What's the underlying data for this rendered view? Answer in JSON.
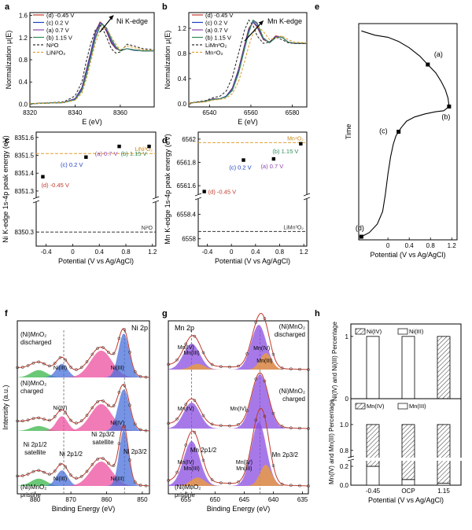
{
  "chart_data": [
    {
      "panel": "a",
      "type": "line",
      "xlabel": "E (eV)",
      "ylabel": "Normalization μ(E)",
      "title": "Ni K-edge",
      "xlim": [
        8320,
        8375
      ],
      "ylim": [
        -0.05,
        1.65
      ],
      "xticks": [
        8320,
        8340,
        8360
      ],
      "yticks": [
        0.0,
        0.4,
        0.8,
        1.2,
        1.6
      ],
      "legend_position": "top-left",
      "annotations": [
        "arrow toward higher energy from (d) to (b)"
      ],
      "series": [
        {
          "name": "(d) -0.45 V",
          "color": "#c0392b",
          "dash": "solid",
          "x": [
            8320,
            8335,
            8340,
            8343,
            8345,
            8347,
            8349,
            8351,
            8352,
            8354,
            8356,
            8358,
            8360,
            8363,
            8366,
            8370,
            8375
          ],
          "y": [
            0.01,
            0.03,
            0.1,
            0.3,
            0.62,
            0.95,
            1.3,
            1.48,
            1.45,
            1.3,
            1.1,
            1.0,
            0.97,
            1.0,
            0.97,
            0.96,
            0.96
          ]
        },
        {
          "name": "(c) 0.2 V",
          "color": "#1f3fbf",
          "dash": "solid",
          "x": [
            8320,
            8335,
            8340,
            8343,
            8345,
            8347,
            8349,
            8351,
            8352,
            8354,
            8356,
            8358,
            8360,
            8363,
            8366,
            8370,
            8375
          ],
          "y": [
            0.01,
            0.03,
            0.1,
            0.29,
            0.6,
            0.93,
            1.28,
            1.46,
            1.45,
            1.32,
            1.12,
            1.01,
            0.97,
            1.0,
            0.97,
            0.96,
            0.96
          ]
        },
        {
          "name": "(a) 0.7 V",
          "color": "#8e44ad",
          "dash": "solid",
          "x": [
            8320,
            8335,
            8340,
            8343,
            8345,
            8347,
            8349,
            8351,
            8352,
            8354,
            8356,
            8358,
            8360,
            8363,
            8366,
            8370,
            8375
          ],
          "y": [
            0.01,
            0.03,
            0.09,
            0.26,
            0.55,
            0.88,
            1.22,
            1.42,
            1.45,
            1.35,
            1.15,
            1.02,
            0.96,
            1.0,
            0.98,
            0.96,
            0.96
          ]
        },
        {
          "name": "(b) 1.15 V",
          "color": "#2e8b57",
          "dash": "solid",
          "x": [
            8320,
            8335,
            8340,
            8343,
            8345,
            8347,
            8349,
            8351,
            8352,
            8354,
            8356,
            8358,
            8360,
            8363,
            8366,
            8370,
            8375
          ],
          "y": [
            0.01,
            0.03,
            0.08,
            0.24,
            0.52,
            0.85,
            1.18,
            1.4,
            1.44,
            1.37,
            1.18,
            1.04,
            0.96,
            1.0,
            0.98,
            0.96,
            0.96
          ]
        },
        {
          "name": "Ni²O",
          "color": "#333333",
          "dash": "dashed",
          "x": [
            8320,
            8335,
            8340,
            8343,
            8345,
            8347,
            8349,
            8351,
            8352,
            8354,
            8356,
            8358,
            8360,
            8363,
            8366,
            8370,
            8375
          ],
          "y": [
            0.01,
            0.04,
            0.15,
            0.4,
            0.78,
            1.1,
            1.34,
            1.42,
            1.38,
            1.2,
            1.0,
            0.92,
            0.94,
            1.08,
            1.05,
            1.0,
            0.98
          ]
        },
        {
          "name": "LiNi³O₂",
          "color": "#e0a030",
          "dash": "dashed",
          "x": [
            8320,
            8335,
            8340,
            8343,
            8345,
            8347,
            8349,
            8351,
            8352,
            8354,
            8356,
            8358,
            8360,
            8363,
            8366,
            8370,
            8375
          ],
          "y": [
            0.01,
            0.03,
            0.07,
            0.2,
            0.45,
            0.78,
            1.1,
            1.32,
            1.38,
            1.36,
            1.22,
            1.08,
            0.98,
            1.05,
            1.02,
            0.98,
            0.97
          ]
        }
      ]
    },
    {
      "panel": "b",
      "type": "line",
      "xlabel": "E (eV)",
      "ylabel": "Normalization μ(E)",
      "title": "Mn K-edge",
      "xlim": [
        6530,
        6587
      ],
      "ylim": [
        -0.05,
        1.45
      ],
      "xticks": [
        6540,
        6560,
        6580
      ],
      "yticks": [
        0.0,
        0.4,
        0.8,
        1.2
      ],
      "legend_position": "top-left",
      "annotations": [
        "arrow toward higher energy"
      ],
      "series": [
        {
          "name": "(d) -0.45 V",
          "color": "#c0392b",
          "dash": "solid",
          "x": [
            6530,
            6538,
            6542,
            6545,
            6548,
            6551,
            6554,
            6557,
            6559,
            6561,
            6563,
            6566,
            6569,
            6572,
            6575,
            6578,
            6581,
            6587
          ],
          "y": [
            0.01,
            0.04,
            0.08,
            0.08,
            0.12,
            0.25,
            0.55,
            0.95,
            1.2,
            1.3,
            1.22,
            1.02,
            0.98,
            1.08,
            1.06,
            0.98,
            0.96,
            0.96
          ]
        },
        {
          "name": "(c) 0.2 V",
          "color": "#1f3fbf",
          "dash": "solid",
          "x": [
            6530,
            6538,
            6542,
            6545,
            6548,
            6551,
            6554,
            6557,
            6559,
            6561,
            6563,
            6566,
            6569,
            6572,
            6575,
            6578,
            6581,
            6587
          ],
          "y": [
            0.01,
            0.04,
            0.08,
            0.08,
            0.12,
            0.24,
            0.53,
            0.93,
            1.18,
            1.3,
            1.24,
            1.03,
            0.98,
            1.07,
            1.06,
            0.98,
            0.96,
            0.96
          ]
        },
        {
          "name": "(a) 0.7 V",
          "color": "#8e44ad",
          "dash": "solid",
          "x": [
            6530,
            6538,
            6542,
            6545,
            6548,
            6551,
            6554,
            6557,
            6559,
            6561,
            6563,
            6566,
            6569,
            6572,
            6575,
            6578,
            6581,
            6587
          ],
          "y": [
            0.01,
            0.04,
            0.08,
            0.08,
            0.11,
            0.22,
            0.5,
            0.9,
            1.15,
            1.32,
            1.27,
            1.04,
            0.97,
            1.06,
            1.06,
            0.98,
            0.96,
            0.96
          ]
        },
        {
          "name": "(b) 1.15 V",
          "color": "#2e8b57",
          "dash": "solid",
          "x": [
            6530,
            6538,
            6542,
            6545,
            6548,
            6551,
            6554,
            6557,
            6559,
            6561,
            6563,
            6566,
            6569,
            6572,
            6575,
            6578,
            6581,
            6587
          ],
          "y": [
            0.01,
            0.04,
            0.07,
            0.08,
            0.11,
            0.21,
            0.48,
            0.88,
            1.13,
            1.33,
            1.29,
            1.05,
            0.97,
            1.05,
            1.06,
            0.98,
            0.96,
            0.96
          ]
        },
        {
          "name": "LiMn³O₂",
          "color": "#333333",
          "dash": "dashed",
          "x": [
            6530,
            6538,
            6542,
            6545,
            6548,
            6551,
            6554,
            6557,
            6559,
            6561,
            6563,
            6566,
            6569,
            6572,
            6575,
            6578,
            6581,
            6587
          ],
          "y": [
            0.01,
            0.05,
            0.1,
            0.12,
            0.2,
            0.42,
            0.8,
            1.18,
            1.33,
            1.25,
            1.08,
            0.96,
            0.98,
            1.06,
            1.02,
            0.97,
            0.96,
            0.96
          ]
        },
        {
          "name": "Mn⁴O₂",
          "color": "#e0a030",
          "dash": "dashed",
          "x": [
            6530,
            6538,
            6542,
            6545,
            6548,
            6551,
            6554,
            6557,
            6559,
            6561,
            6563,
            6566,
            6569,
            6572,
            6575,
            6578,
            6581,
            6587
          ],
          "y": [
            0.01,
            0.03,
            0.06,
            0.07,
            0.09,
            0.16,
            0.35,
            0.68,
            0.92,
            1.12,
            1.23,
            1.15,
            1.02,
            1.05,
            1.08,
            1.02,
            0.98,
            0.97
          ]
        }
      ]
    },
    {
      "panel": "c",
      "type": "scatter",
      "xlabel": "Potential (V vs Ag/AgCl)",
      "ylabel": "Ni K-edge 1s-4p peak energy (eV)",
      "xlim": [
        -0.55,
        1.25
      ],
      "xticks": [
        -0.4,
        0.0,
        0.4,
        0.8,
        1.2
      ],
      "y_break": true,
      "yticks_upper": [
        8351.3,
        8351.4,
        8351.5,
        8351.6
      ],
      "ytick_labels_upper": [
        "8351.3",
        "8351.4",
        "8351.5",
        "8351.6"
      ],
      "yticks_lower": [
        8350.3
      ],
      "ytick_labels_lower": [
        "8350.3"
      ],
      "points": [
        {
          "label": "(d) -0.45 V",
          "x": -0.45,
          "y": 8351.38,
          "color": "#c0392b"
        },
        {
          "label": "(c) 0.2 V",
          "x": 0.2,
          "y": 8351.49,
          "color": "#1f3fbf"
        },
        {
          "label": "(a) 0.7 V",
          "x": 0.7,
          "y": 8351.55,
          "color": "#8e44ad"
        },
        {
          "label": "(b) 1.15 V",
          "x": 1.15,
          "y": 8351.55,
          "color": "#2e8b57"
        }
      ],
      "reference_lines": [
        {
          "label": "LiNi³O₂",
          "y": 8351.51,
          "color": "#e0a030"
        },
        {
          "label": "Ni²O",
          "y": 8350.3,
          "color": "#333333"
        }
      ]
    },
    {
      "panel": "d",
      "type": "scatter",
      "xlabel": "Potential (V vs Ag/AgCl)",
      "ylabel": "Mn K-edge 1s-4p peak energy (eV)",
      "xlim": [
        -0.55,
        1.25
      ],
      "xticks": [
        -0.4,
        0.0,
        0.4,
        0.8,
        1.2
      ],
      "y_break": true,
      "yticks_upper": [
        6561.6,
        6561.8,
        6562.0
      ],
      "ytick_labels_upper": [
        "6561.6",
        "6561.8",
        "6562.0"
      ],
      "yticks_lower": [
        6558.0,
        6558.4
      ],
      "ytick_labels_lower": [
        "6558.0",
        "6558.4"
      ],
      "points": [
        {
          "label": "(d) -0.45 V",
          "x": -0.45,
          "y": 6561.55,
          "color": "#c0392b"
        },
        {
          "label": "(c) 0.2 V",
          "x": 0.2,
          "y": 6561.82,
          "color": "#1f3fbf"
        },
        {
          "label": "(a) 0.7 V",
          "x": 0.7,
          "y": 6561.83,
          "color": "#8e44ad"
        },
        {
          "label": "(b) 1.15 V",
          "x": 1.15,
          "y": 6561.96,
          "color": "#2e8b57"
        }
      ],
      "reference_lines": [
        {
          "label": "Mn⁴O₂",
          "y": 6561.97,
          "color": "#e0a030"
        },
        {
          "label": "LiMn³O₂",
          "y": 6558.12,
          "color": "#333333"
        }
      ]
    },
    {
      "panel": "e",
      "type": "line",
      "xlabel": "Potential (V vs Ag/AgCl)",
      "ylabel": "Time",
      "xlim": [
        -0.55,
        1.3
      ],
      "xticks": [
        0.0,
        0.4,
        0.8,
        1.2
      ],
      "ylim": [
        0,
        1
      ],
      "yticks": [],
      "series": [
        {
          "name": "",
          "color": "#000000",
          "x": [
            -0.5,
            -0.35,
            -0.2,
            -0.1,
            -0.05,
            0.0,
            0.05,
            0.1,
            0.15,
            0.2,
            0.25,
            0.35,
            0.5,
            0.7,
            0.9,
            1.05,
            1.15,
            1.13,
            1.08,
            1.0,
            0.9,
            0.75,
            0.6,
            0.4,
            0.2,
            0.0,
            -0.25,
            -0.5
          ],
          "y": [
            0.0,
            0.02,
            0.06,
            0.12,
            0.2,
            0.3,
            0.38,
            0.44,
            0.48,
            0.5,
            0.52,
            0.55,
            0.57,
            0.585,
            0.595,
            0.6,
            0.62,
            0.66,
            0.7,
            0.74,
            0.78,
            0.82,
            0.86,
            0.9,
            0.93,
            0.95,
            0.96,
            0.98
          ]
        }
      ],
      "points": [
        {
          "label": "(d)",
          "x": -0.5,
          "y": 0.0
        },
        {
          "label": "(c)",
          "x": 0.2,
          "y": 0.5
        },
        {
          "label": "(b)",
          "x": 1.15,
          "y": 0.62
        },
        {
          "label": "(a)",
          "x": 0.75,
          "y": 0.82
        }
      ]
    },
    {
      "panel": "f",
      "type": "line",
      "xlabel": "Binding Energy (eV)",
      "ylabel": "Intensity (a.u.)",
      "title": "Ni 2p",
      "xlim": [
        885,
        848
      ],
      "xticks": [
        880,
        870,
        860,
        850
      ],
      "spectra": [
        {
          "name": "(Ni)MnO₂ discharged",
          "peak_labels": [
            "Ni(III)",
            "Ni(III)"
          ]
        },
        {
          "name": "(Ni)MnO₂ charged",
          "peak_labels": [
            "Ni(IV)",
            "Ni(IV)"
          ]
        },
        {
          "name": "(Ni)MnO₂ pristine",
          "peak_labels": [
            "Ni(III)",
            "Ni(III)"
          ],
          "annotations": [
            "Ni 2p1/2 satellite",
            "Ni 2p1/2",
            "Ni 2p3/2 satellite",
            "Ni 2p3/2"
          ]
        }
      ],
      "reference_lines_x": [
        872.0,
        855.0
      ]
    },
    {
      "panel": "g",
      "type": "line",
      "xlabel": "Binding Energy (eV)",
      "ylabel": "",
      "title": "Mn 2p",
      "xlim": [
        658,
        634
      ],
      "xticks": [
        655,
        650,
        645,
        640,
        635
      ],
      "spectra": [
        {
          "name": "(Ni)MnO₂ discharged",
          "peak_labels": [
            "Mn(IV)",
            "Mn(III)",
            "Mn(IV)",
            "Mn(III)"
          ]
        },
        {
          "name": "(Ni)MnO₂ charged",
          "peak_labels": [
            "Mn(IV)",
            "Mn(IV)"
          ]
        },
        {
          "name": "(Ni)MnO₂ pristine",
          "peak_labels": [
            "Mn(IV)",
            "Mn(III)",
            "Mn(IV)",
            "Mn(III)"
          ],
          "annotations": [
            "Mn 2p1/2",
            "Mn 2p3/2"
          ]
        }
      ],
      "reference_lines_x": [
        654.0,
        642.3
      ]
    },
    {
      "panel": "h",
      "type": "bar",
      "xlabel": "Potential (V vs Ag/AgCl)",
      "categories": [
        "-0.45",
        "OCP",
        "1.15"
      ],
      "subplots": [
        {
          "ylabel": "Ni(IV) and Ni(III) Percentage",
          "ylim": [
            0,
            1.2
          ],
          "yticks": [
            0,
            1
          ],
          "series": [
            {
              "name": "Ni(IV)",
              "values": [
                0,
                0,
                1.0
              ],
              "pattern": "hatched"
            },
            {
              "name": "Ni(III)",
              "values": [
                1.0,
                1.0,
                0
              ],
              "pattern": "plain"
            }
          ]
        },
        {
          "ylabel": "Mn(IV) and Mn(III) Percentage",
          "ylim": [
            0,
            1.2
          ],
          "yticks": [
            0.0,
            0.2,
            0.8,
            1.0
          ],
          "y_break": true,
          "series": [
            {
              "name": "Mn(IV)",
              "values": [
                0.8,
                0.94,
                0.98
              ],
              "pattern": "hatched"
            },
            {
              "name": "Mn(III)",
              "values": [
                0.2,
                0.06,
                0.02
              ],
              "pattern": "plain"
            }
          ]
        }
      ]
    }
  ],
  "panel_letters": [
    "a",
    "b",
    "c",
    "d",
    "e",
    "f",
    "g",
    "h"
  ],
  "text": {
    "ylabel_norm": "Normalization μ(E)",
    "ylabel_ni_peak": "Ni K-edge 1s-4p peak energy (eV)",
    "ylabel_mn_peak": "Mn K-edge 1s-4p peak energy (eV)",
    "xlabel_E": "E (eV)",
    "xlabel_pot": "Potential (V vs Ag/AgCl)",
    "xlabel_be": "Binding Energy (eV)",
    "ylabel_time": "Time",
    "ylabel_intensity": "Intensity (a.u.)",
    "ylabel_ni_pct": "Ni(IV) and Ni(III) Percentage",
    "ylabel_mn_pct": "Mn(IV) and Mn(III) Percentage"
  }
}
